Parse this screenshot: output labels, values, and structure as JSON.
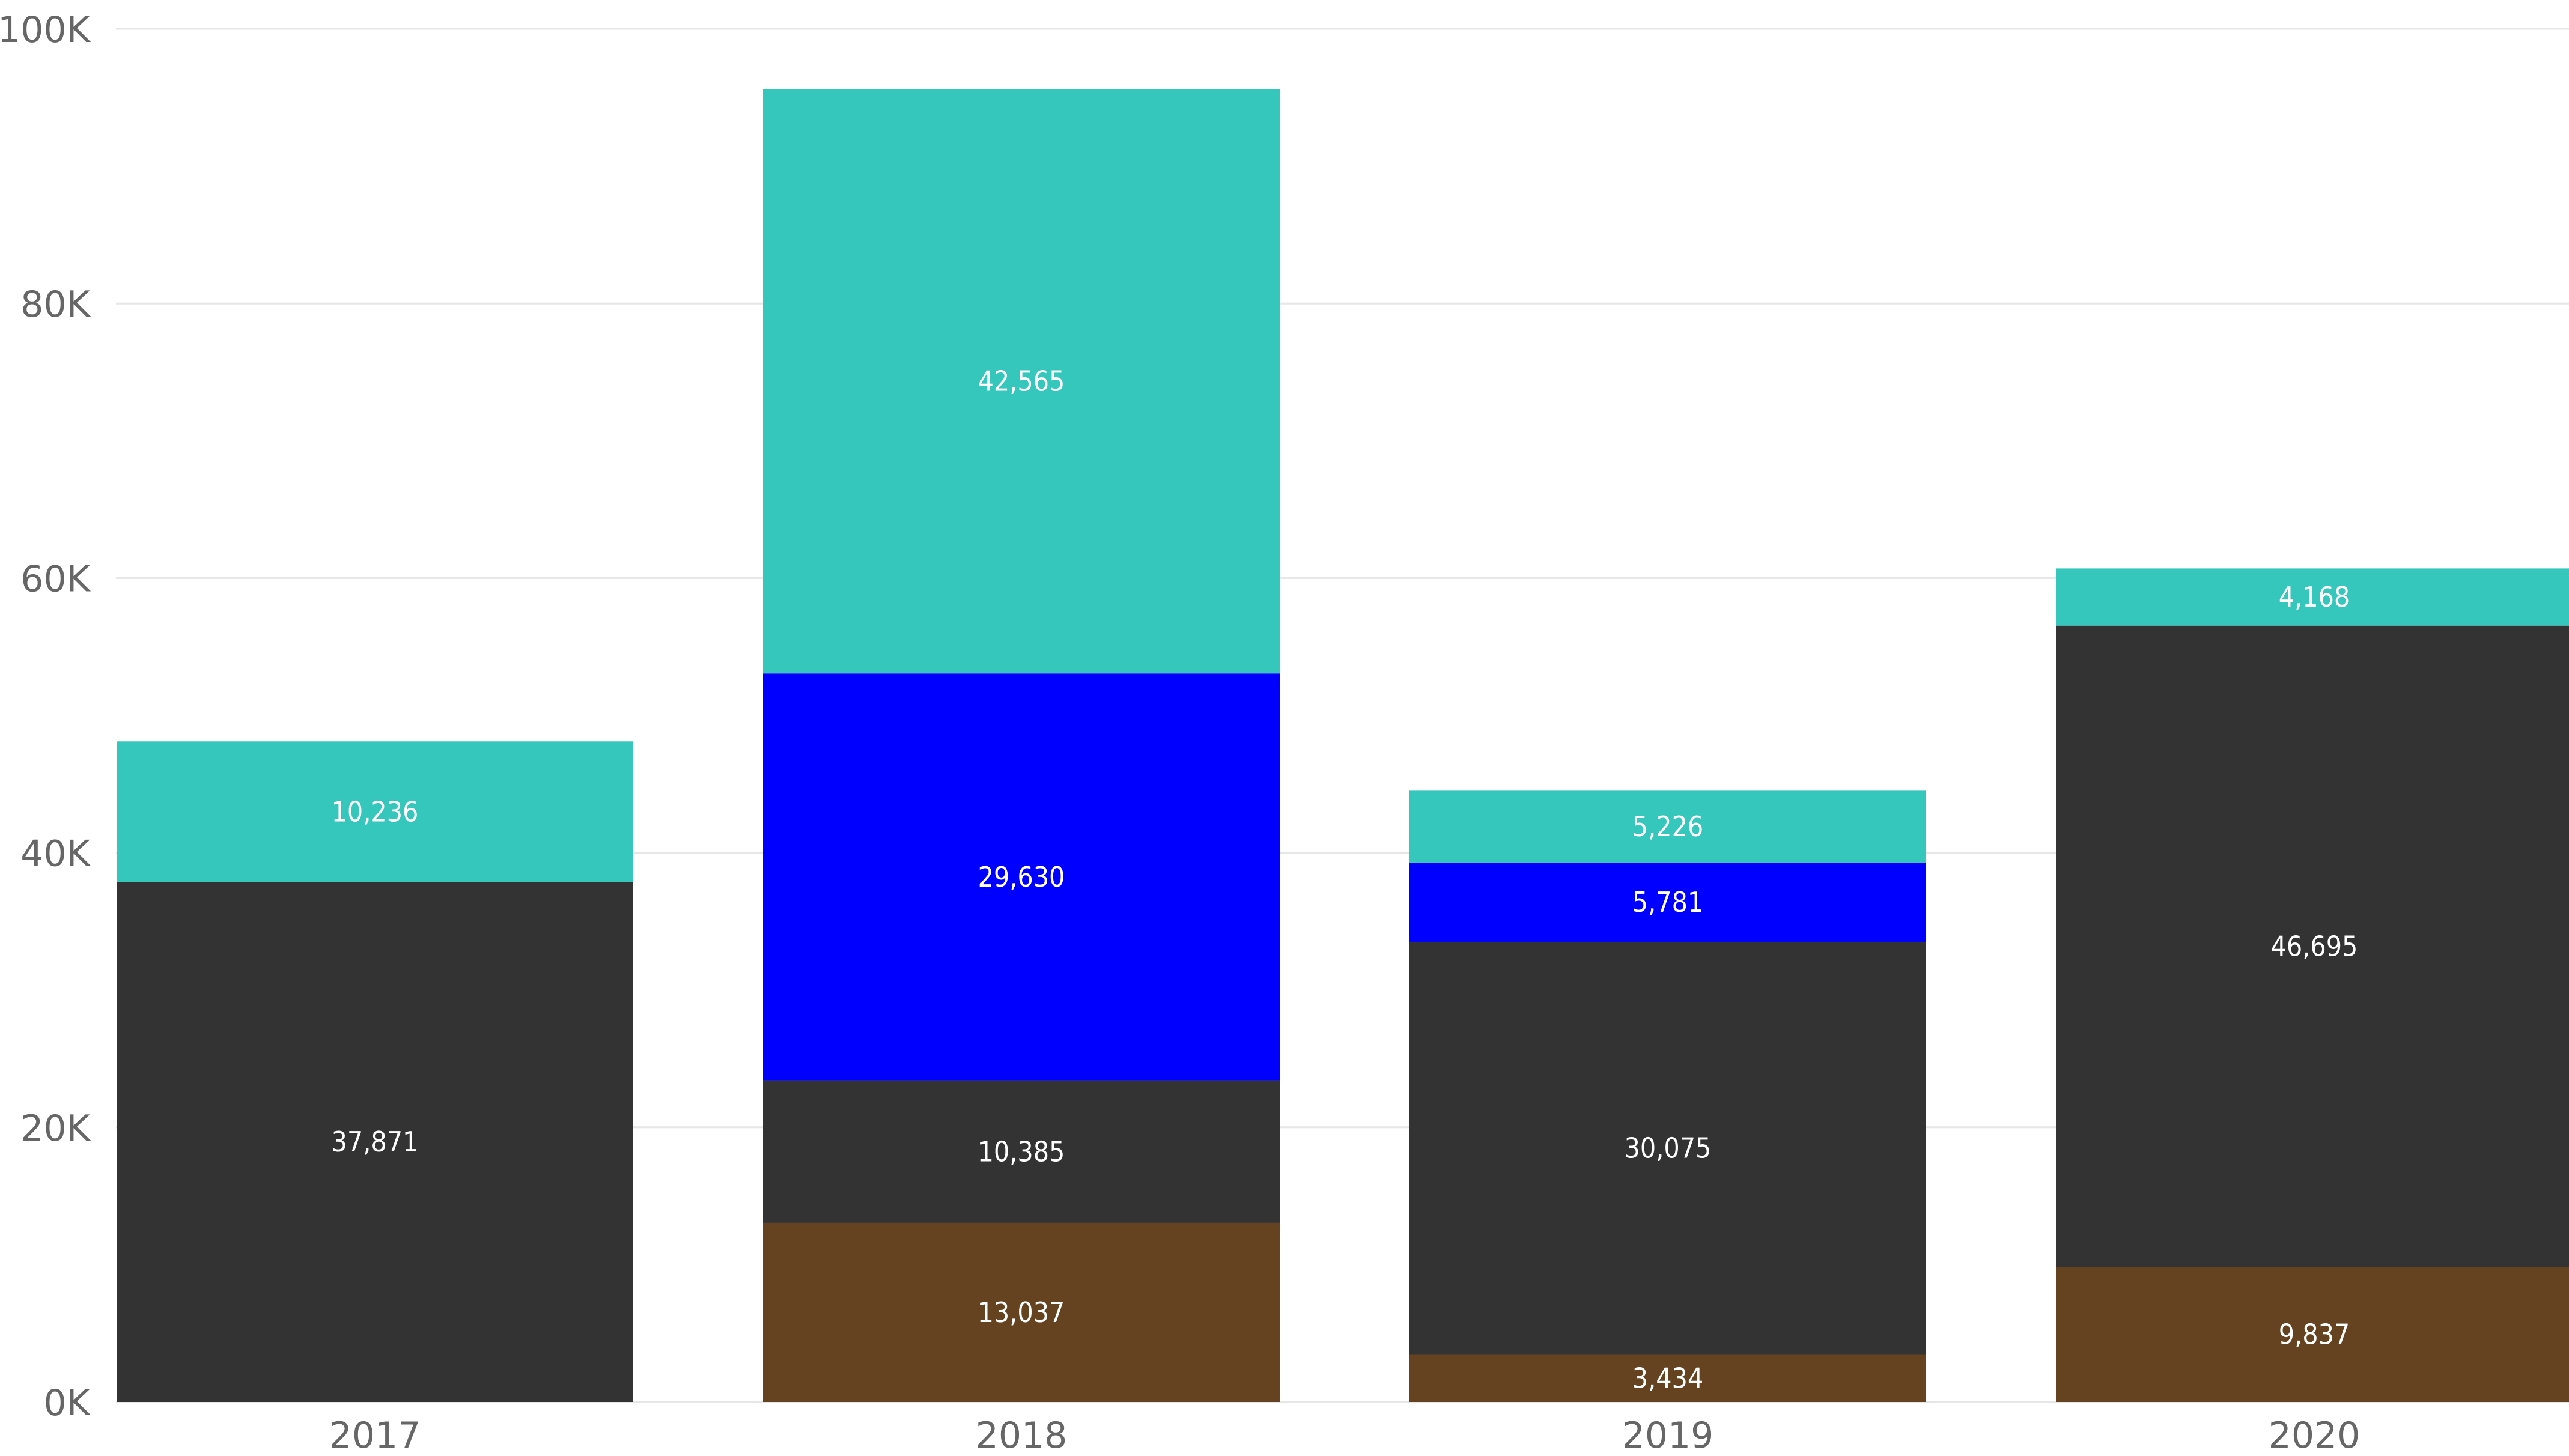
{
  "chart_data": {
    "type": "bar",
    "stacked": true,
    "categories": [
      "2017",
      "2018",
      "2019",
      "2020"
    ],
    "series": [
      {
        "color": "#654321",
        "values": [
          null,
          13037,
          3434,
          9837
        ],
        "labels": [
          "",
          "13,037",
          "3,434",
          "9,837"
        ]
      },
      {
        "color": "#333333",
        "values": [
          37871,
          10385,
          30075,
          46695
        ],
        "labels": [
          "37,871",
          "10,385",
          "30,075",
          "46,695"
        ]
      },
      {
        "color": "#0000ff",
        "values": [
          null,
          29630,
          5781,
          null
        ],
        "labels": [
          "",
          "29,630",
          "5,781",
          ""
        ]
      },
      {
        "color": "#35c6bc",
        "values": [
          10236,
          42565,
          5226,
          4168
        ],
        "labels": [
          "10,236",
          "42,565",
          "5,226",
          "4,168"
        ]
      }
    ],
    "yticks": [
      0,
      20000,
      40000,
      60000,
      80000,
      100000
    ],
    "ytick_labels": [
      "0K",
      "20K",
      "40K",
      "60K",
      "80K",
      "100K"
    ],
    "ylim": [
      0,
      100000
    ],
    "grid": true,
    "title": "",
    "xlabel": "",
    "ylabel": ""
  }
}
